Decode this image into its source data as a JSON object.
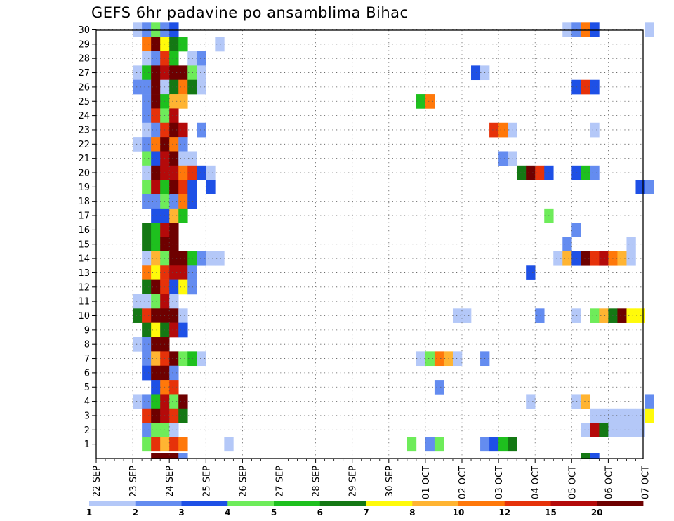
{
  "chart_data": {
    "type": "heatmap",
    "title": "GEFS 6hr padavine po ansamblima Bihac",
    "y_ticks": [
      "1",
      "2",
      "3",
      "4",
      "5",
      "6",
      "7",
      "8",
      "9",
      "10",
      "11",
      "12",
      "13",
      "14",
      "15",
      "16",
      "17",
      "18",
      "19",
      "20",
      "21",
      "22",
      "23",
      "24",
      "25",
      "26",
      "27",
      "28",
      "29",
      "30"
    ],
    "x_ticks": [
      "22 SEP",
      "23 SEP",
      "24 SEP",
      "25 SEP",
      "26 SEP",
      "27 SEP",
      "28 SEP",
      "29 SEP",
      "30 SEP",
      "01 OCT",
      "02 OCT",
      "03 OCT",
      "04 OCT",
      "05 OCT",
      "06 OCT",
      "07 OCT"
    ],
    "grid": true,
    "colorbar": {
      "ticks": [
        "1",
        "2",
        "3",
        "4",
        "5",
        "6",
        "7",
        "8",
        "10",
        "12",
        "15",
        "20"
      ],
      "colors": [
        "#b4c8f8",
        "#648cf0",
        "#1e50e6",
        "#6eec5a",
        "#1ec01e",
        "#147814",
        "#fffa0a",
        "#ffb432",
        "#ff780a",
        "#e6320a",
        "#b40a0a",
        "#6e0000"
      ]
    },
    "cells": [
      [
        30,
        1.0,
        1
      ],
      [
        30,
        1.25,
        2
      ],
      [
        30,
        1.5,
        4
      ],
      [
        30,
        1.75,
        2
      ],
      [
        30,
        2.0,
        3
      ],
      [
        30,
        12.75,
        1
      ],
      [
        30,
        13.0,
        2
      ],
      [
        30,
        13.25,
        9
      ],
      [
        30,
        13.5,
        3
      ],
      [
        30,
        15.0,
        1
      ],
      [
        29,
        1.25,
        9
      ],
      [
        29,
        1.5,
        12
      ],
      [
        29,
        1.75,
        7
      ],
      [
        29,
        2.0,
        6
      ],
      [
        29,
        2.25,
        5
      ],
      [
        29,
        3.25,
        1
      ],
      [
        28,
        1.25,
        1
      ],
      [
        28,
        1.5,
        2
      ],
      [
        28,
        1.75,
        10
      ],
      [
        28,
        2.0,
        5
      ],
      [
        28,
        2.5,
        1
      ],
      [
        28,
        2.75,
        2
      ],
      [
        27,
        1.0,
        1
      ],
      [
        27,
        1.25,
        5
      ],
      [
        27,
        1.5,
        12
      ],
      [
        27,
        1.75,
        11
      ],
      [
        27,
        2.0,
        12
      ],
      [
        27,
        2.25,
        12
      ],
      [
        27,
        2.5,
        4
      ],
      [
        27,
        2.75,
        1
      ],
      [
        27,
        10.25,
        3
      ],
      [
        27,
        10.5,
        1
      ],
      [
        26,
        1.0,
        2
      ],
      [
        26,
        1.25,
        2
      ],
      [
        26,
        1.5,
        12
      ],
      [
        26,
        1.75,
        1
      ],
      [
        26,
        2.0,
        6
      ],
      [
        26,
        2.25,
        9
      ],
      [
        26,
        2.5,
        6
      ],
      [
        26,
        2.75,
        1
      ],
      [
        26,
        13.0,
        3
      ],
      [
        26,
        13.25,
        10
      ],
      [
        26,
        13.5,
        3
      ],
      [
        25,
        1.25,
        2
      ],
      [
        25,
        1.5,
        12
      ],
      [
        25,
        1.75,
        5
      ],
      [
        25,
        2.0,
        8
      ],
      [
        25,
        2.25,
        8
      ],
      [
        25,
        8.75,
        5
      ],
      [
        25,
        9.0,
        9
      ],
      [
        24,
        1.25,
        2
      ],
      [
        24,
        1.5,
        10
      ],
      [
        24,
        1.75,
        4
      ],
      [
        24,
        2.0,
        11
      ],
      [
        23,
        1.25,
        1
      ],
      [
        23,
        1.5,
        2
      ],
      [
        23,
        1.75,
        10
      ],
      [
        23,
        2.0,
        12
      ],
      [
        23,
        2.25,
        11
      ],
      [
        23,
        2.75,
        2
      ],
      [
        23,
        10.75,
        10
      ],
      [
        23,
        11.0,
        9
      ],
      [
        23,
        11.25,
        1
      ],
      [
        23,
        13.5,
        1
      ],
      [
        22,
        1.0,
        1
      ],
      [
        22,
        1.25,
        2
      ],
      [
        22,
        1.5,
        9
      ],
      [
        22,
        1.75,
        12
      ],
      [
        22,
        2.0,
        9
      ],
      [
        22,
        2.25,
        2
      ],
      [
        21,
        1.25,
        4
      ],
      [
        21,
        1.5,
        3
      ],
      [
        21,
        1.75,
        11
      ],
      [
        21,
        2.0,
        12
      ],
      [
        21,
        2.25,
        1
      ],
      [
        21,
        2.5,
        1
      ],
      [
        21,
        11.0,
        2
      ],
      [
        21,
        11.25,
        1
      ],
      [
        20,
        1.25,
        1
      ],
      [
        20,
        1.5,
        12
      ],
      [
        20,
        1.75,
        11
      ],
      [
        20,
        2.0,
        11
      ],
      [
        20,
        2.25,
        9
      ],
      [
        20,
        2.5,
        10
      ],
      [
        20,
        2.75,
        3
      ],
      [
        20,
        3.0,
        1
      ],
      [
        20,
        11.5,
        6
      ],
      [
        20,
        11.75,
        12
      ],
      [
        20,
        12.0,
        10
      ],
      [
        20,
        12.25,
        3
      ],
      [
        20,
        13.0,
        3
      ],
      [
        20,
        13.25,
        5
      ],
      [
        20,
        13.5,
        2
      ],
      [
        19,
        1.25,
        4
      ],
      [
        19,
        1.5,
        11
      ],
      [
        19,
        1.75,
        5
      ],
      [
        19,
        2.0,
        12
      ],
      [
        19,
        2.25,
        10
      ],
      [
        19,
        2.5,
        3
      ],
      [
        19,
        3.0,
        3
      ],
      [
        19,
        14.75,
        3
      ],
      [
        19,
        15.0,
        2
      ],
      [
        18,
        1.25,
        2
      ],
      [
        18,
        1.5,
        2
      ],
      [
        18,
        1.75,
        4
      ],
      [
        18,
        2.0,
        2
      ],
      [
        18,
        2.25,
        9
      ],
      [
        18,
        2.5,
        3
      ],
      [
        17,
        1.5,
        3
      ],
      [
        17,
        1.75,
        3
      ],
      [
        17,
        2.0,
        8
      ],
      [
        17,
        2.25,
        5
      ],
      [
        17,
        12.25,
        4
      ],
      [
        16,
        1.25,
        6
      ],
      [
        16,
        1.5,
        5
      ],
      [
        16,
        1.75,
        11
      ],
      [
        16,
        2.0,
        12
      ],
      [
        16,
        13.0,
        2
      ],
      [
        15,
        1.25,
        6
      ],
      [
        15,
        1.5,
        5
      ],
      [
        15,
        1.75,
        12
      ],
      [
        15,
        2.0,
        12
      ],
      [
        15,
        12.75,
        2
      ],
      [
        15,
        14.5,
        1
      ],
      [
        14,
        1.25,
        1
      ],
      [
        14,
        1.5,
        8
      ],
      [
        14,
        1.75,
        4
      ],
      [
        14,
        2.0,
        12
      ],
      [
        14,
        2.25,
        12
      ],
      [
        14,
        2.5,
        5
      ],
      [
        14,
        2.75,
        2
      ],
      [
        14,
        3.0,
        1
      ],
      [
        14,
        3.25,
        1
      ],
      [
        14,
        12.5,
        1
      ],
      [
        14,
        12.75,
        8
      ],
      [
        14,
        13.0,
        3
      ],
      [
        14,
        13.25,
        12
      ],
      [
        14,
        13.5,
        10
      ],
      [
        14,
        13.75,
        11
      ],
      [
        14,
        14.0,
        9
      ],
      [
        14,
        14.25,
        8
      ],
      [
        14,
        14.5,
        1
      ],
      [
        13,
        1.25,
        9
      ],
      [
        13,
        1.5,
        7
      ],
      [
        13,
        1.75,
        10
      ],
      [
        13,
        2.0,
        11
      ],
      [
        13,
        2.25,
        11
      ],
      [
        13,
        2.5,
        2
      ],
      [
        13,
        11.75,
        3
      ],
      [
        12,
        1.25,
        6
      ],
      [
        12,
        1.5,
        12
      ],
      [
        12,
        1.75,
        10
      ],
      [
        12,
        2.0,
        3
      ],
      [
        12,
        2.25,
        7
      ],
      [
        12,
        2.5,
        2
      ],
      [
        11,
        1.0,
        1
      ],
      [
        11,
        1.25,
        1
      ],
      [
        11,
        1.5,
        4
      ],
      [
        11,
        1.75,
        11
      ],
      [
        11,
        2.0,
        1
      ],
      [
        10,
        1.0,
        6
      ],
      [
        10,
        1.25,
        10
      ],
      [
        10,
        1.5,
        12
      ],
      [
        10,
        1.75,
        12
      ],
      [
        10,
        2.0,
        12
      ],
      [
        10,
        2.25,
        1
      ],
      [
        10,
        9.75,
        1
      ],
      [
        10,
        10.0,
        1
      ],
      [
        10,
        12.0,
        2
      ],
      [
        10,
        13.0,
        1
      ],
      [
        10,
        13.5,
        4
      ],
      [
        10,
        13.75,
        8
      ],
      [
        10,
        14.0,
        6
      ],
      [
        10,
        14.25,
        12
      ],
      [
        10,
        14.5,
        7
      ],
      [
        10,
        14.75,
        7
      ],
      [
        9,
        1.25,
        6
      ],
      [
        9,
        1.5,
        7
      ],
      [
        9,
        1.75,
        6
      ],
      [
        9,
        2.0,
        11
      ],
      [
        9,
        2.25,
        3
      ],
      [
        8,
        1.0,
        1
      ],
      [
        8,
        1.25,
        2
      ],
      [
        8,
        1.5,
        12
      ],
      [
        8,
        1.75,
        12
      ],
      [
        7,
        1.25,
        2
      ],
      [
        7,
        1.5,
        8
      ],
      [
        7,
        1.75,
        10
      ],
      [
        7,
        2.0,
        12
      ],
      [
        7,
        2.25,
        4
      ],
      [
        7,
        2.5,
        5
      ],
      [
        7,
        2.75,
        1
      ],
      [
        7,
        8.75,
        1
      ],
      [
        7,
        9.0,
        4
      ],
      [
        7,
        9.25,
        9
      ],
      [
        7,
        9.5,
        8
      ],
      [
        7,
        9.75,
        1
      ],
      [
        7,
        10.5,
        2
      ],
      [
        6,
        1.25,
        3
      ],
      [
        6,
        1.5,
        12
      ],
      [
        6,
        1.75,
        12
      ],
      [
        6,
        2.0,
        2
      ],
      [
        5,
        1.5,
        3
      ],
      [
        5,
        1.75,
        9
      ],
      [
        5,
        2.0,
        10
      ],
      [
        5,
        9.25,
        2
      ],
      [
        4,
        1.0,
        1
      ],
      [
        4,
        1.25,
        2
      ],
      [
        4,
        1.5,
        5
      ],
      [
        4,
        1.75,
        11
      ],
      [
        4,
        2.0,
        4
      ],
      [
        4,
        2.25,
        12
      ],
      [
        4,
        11.75,
        1
      ],
      [
        4,
        13.0,
        1
      ],
      [
        4,
        13.25,
        8
      ],
      [
        4,
        15.0,
        2
      ],
      [
        3,
        1.25,
        10
      ],
      [
        3,
        1.5,
        12
      ],
      [
        3,
        1.75,
        11
      ],
      [
        3,
        2.0,
        10
      ],
      [
        3,
        2.25,
        6
      ],
      [
        3,
        13.5,
        1
      ],
      [
        3,
        13.75,
        1
      ],
      [
        3,
        14.0,
        1
      ],
      [
        3,
        14.25,
        1
      ],
      [
        3,
        14.5,
        1
      ],
      [
        3,
        14.75,
        1
      ],
      [
        3,
        15.0,
        7
      ],
      [
        2,
        1.25,
        2
      ],
      [
        2,
        1.5,
        4
      ],
      [
        2,
        1.75,
        4
      ],
      [
        2,
        2.0,
        1
      ],
      [
        2,
        13.25,
        1
      ],
      [
        2,
        13.5,
        11
      ],
      [
        2,
        13.75,
        6
      ],
      [
        2,
        14.0,
        1
      ],
      [
        2,
        14.25,
        1
      ],
      [
        2,
        14.5,
        1
      ],
      [
        2,
        14.75,
        1
      ],
      [
        1,
        1.25,
        4
      ],
      [
        1,
        1.5,
        10
      ],
      [
        1,
        1.75,
        8
      ],
      [
        1,
        2.0,
        10
      ],
      [
        1,
        2.25,
        9
      ],
      [
        1,
        3.5,
        1
      ],
      [
        1,
        8.5,
        4
      ],
      [
        1,
        9.0,
        2
      ],
      [
        1,
        9.25,
        4
      ],
      [
        1,
        10.5,
        2
      ],
      [
        1,
        10.75,
        3
      ],
      [
        1,
        11.0,
        5
      ],
      [
        1,
        11.25,
        6
      ],
      [
        0.1,
        1.5,
        12
      ],
      [
        0.1,
        1.75,
        12
      ],
      [
        0.1,
        2.0,
        12
      ],
      [
        0.1,
        2.25,
        2
      ],
      [
        0.1,
        13.25,
        6
      ],
      [
        0.1,
        13.5,
        3
      ]
    ]
  }
}
